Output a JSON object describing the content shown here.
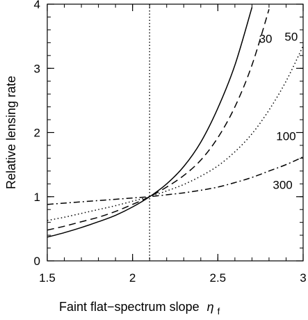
{
  "chart_data": {
    "type": "line",
    "title": "",
    "xlabel": "Faint flat−spectrum slope",
    "xlabel_symbol": "η",
    "xlabel_subscript": "f",
    "ylabel": "Relative lensing rate",
    "xlim": [
      1.5,
      3.0
    ],
    "ylim": [
      0,
      4
    ],
    "xticks": [
      1.5,
      2.0,
      2.5,
      3.0
    ],
    "xtick_labels": [
      "1.5",
      "2",
      "2.5",
      "3"
    ],
    "yticks": [
      0,
      1,
      2,
      3,
      4
    ],
    "ytick_labels": [
      "0",
      "1",
      "2",
      "3",
      "4"
    ],
    "grid": false,
    "legend": "none",
    "vline": {
      "x": 2.1,
      "style": "dotted"
    },
    "series": [
      {
        "name": "30",
        "style": "solid",
        "x": [
          1.5,
          1.6,
          1.7,
          1.8,
          1.9,
          2.0,
          2.1,
          2.2,
          2.3,
          2.4,
          2.5,
          2.6,
          2.7
        ],
        "y": [
          0.37,
          0.44,
          0.52,
          0.61,
          0.71,
          0.84,
          1.0,
          1.2,
          1.47,
          1.85,
          2.38,
          3.05,
          3.95
        ]
      },
      {
        "name": "50",
        "style": "dashed",
        "x": [
          1.5,
          1.6,
          1.7,
          1.8,
          1.9,
          2.0,
          2.1,
          2.2,
          2.3,
          2.4,
          2.5,
          2.6,
          2.7,
          2.8
        ],
        "y": [
          0.48,
          0.54,
          0.61,
          0.68,
          0.77,
          0.88,
          1.0,
          1.15,
          1.33,
          1.57,
          1.92,
          2.4,
          3.05,
          3.92
        ]
      },
      {
        "name": "100",
        "style": "dotted",
        "x": [
          1.5,
          1.6,
          1.7,
          1.8,
          1.9,
          2.0,
          2.1,
          2.2,
          2.3,
          2.4,
          2.5,
          2.6,
          2.7,
          2.8,
          2.9,
          3.0
        ],
        "y": [
          0.63,
          0.68,
          0.74,
          0.8,
          0.86,
          0.93,
          1.0,
          1.09,
          1.19,
          1.32,
          1.48,
          1.7,
          1.98,
          2.35,
          2.8,
          3.35
        ]
      },
      {
        "name": "300",
        "style": "dashdot",
        "x": [
          1.5,
          1.6,
          1.7,
          1.8,
          1.9,
          2.0,
          2.1,
          2.2,
          2.3,
          2.4,
          2.5,
          2.6,
          2.7,
          2.8,
          2.9,
          3.0
        ],
        "y": [
          0.88,
          0.9,
          0.92,
          0.94,
          0.96,
          0.98,
          1.0,
          1.03,
          1.06,
          1.1,
          1.15,
          1.22,
          1.3,
          1.4,
          1.5,
          1.62
        ]
      }
    ],
    "annotations": [
      {
        "text": "30",
        "x": 2.78,
        "y": 3.4
      },
      {
        "text": "50",
        "x": 2.93,
        "y": 3.43
      },
      {
        "text": "100",
        "x": 2.9,
        "y": 1.88
      },
      {
        "text": "300",
        "x": 2.88,
        "y": 1.12
      }
    ]
  }
}
